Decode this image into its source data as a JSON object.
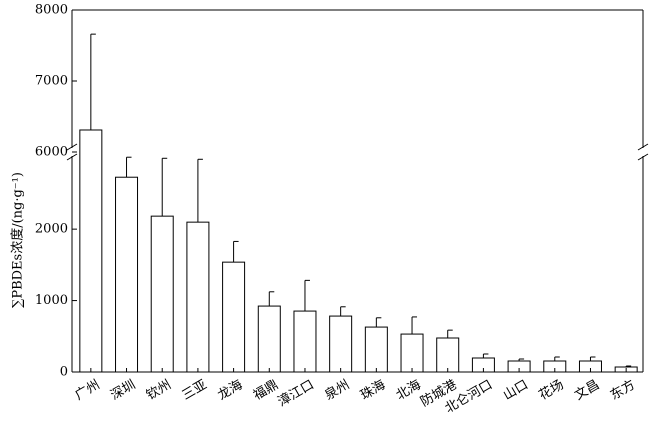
{
  "chart_data": {
    "type": "bar",
    "y_label": "∑PBDEs浓度/(ng·g⁻¹)",
    "categories": [
      "广州",
      "深圳",
      "钦州",
      "三亚",
      "龙海",
      "福鼎",
      "漳江口",
      "泉州",
      "珠海",
      "北海",
      "防城港",
      "北仑河口",
      "山口",
      "花场",
      "文昌",
      "东方"
    ],
    "series": [
      {
        "values": [
          6310,
          2727,
          2182,
          2098,
          1538,
          923,
          853,
          783,
          629,
          531,
          476,
          196,
          154,
          154,
          154,
          70
        ],
        "errors": [
          1350,
          280,
          810,
          880,
          290,
          200,
          430,
          130,
          130,
          240,
          110,
          56,
          28,
          56,
          56,
          14
        ],
        "color": "#ffffff"
      }
    ],
    "ylim": [
      0,
      8000
    ],
    "ybreak": [
      3080,
      6000
    ],
    "yticks": [
      0,
      1000,
      2000,
      6000,
      7000,
      8000
    ]
  }
}
